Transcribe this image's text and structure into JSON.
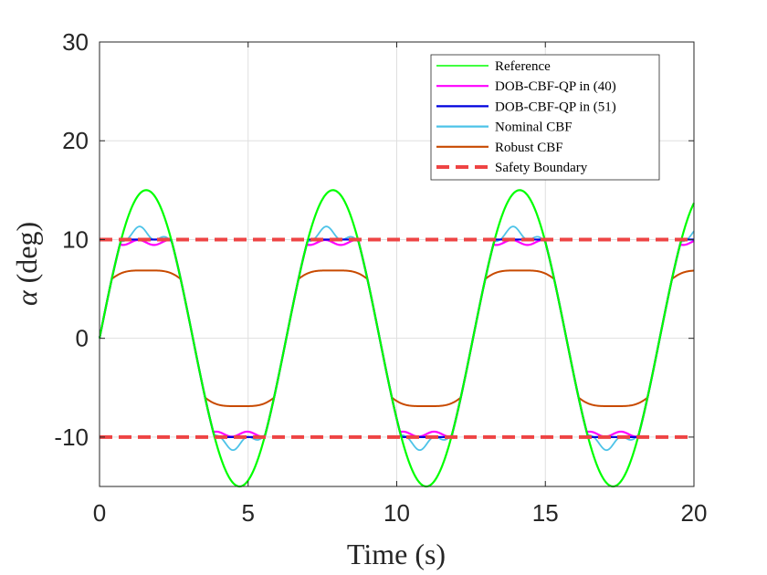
{
  "chart_data": {
    "type": "line",
    "title": "",
    "xlabel": "Time (s)",
    "ylabel_symbol": "α",
    "ylabel_unit": "(deg)",
    "xlim": [
      0,
      20
    ],
    "ylim": [
      -15,
      30
    ],
    "xticks": [
      0,
      5,
      10,
      15,
      20
    ],
    "yticks": [
      -10,
      0,
      10,
      20,
      30
    ],
    "xtick_labels": [
      "0",
      "5",
      "10",
      "15",
      "20"
    ],
    "ytick_labels": [
      "-10",
      "0",
      "10",
      "20",
      "30"
    ],
    "grid": true,
    "legend_position": "top-right",
    "sine_period_s": 6.283,
    "series": [
      {
        "name": "Reference",
        "color": "#00ff00",
        "style": "solid",
        "amplitude": 15
      },
      {
        "name": "DOB-CBF-QP in (40)",
        "color": "#ff00ff",
        "style": "solid",
        "clip": 9.7,
        "ripple": 0.25
      },
      {
        "name": "DOB-CBF-QP in (51)",
        "color": "#0000dd",
        "style": "solid",
        "clip": 10.0
      },
      {
        "name": "Nominal CBF",
        "color": "#4dc3e8",
        "style": "solid",
        "overshoot_peaks": [
          10.6,
          11.3,
          10.5
        ],
        "min_dip": 9.8
      },
      {
        "name": "Robust CBF",
        "color": "#c84a00",
        "style": "solid",
        "plateau_peaks": [
          8.0,
          8.0
        ],
        "plateau_dip": 6.3,
        "plateau_edge": 6.0
      },
      {
        "name": "Safety Boundary",
        "color": "#ee4444",
        "style": "dashed",
        "values": [
          10,
          -10
        ]
      }
    ]
  }
}
